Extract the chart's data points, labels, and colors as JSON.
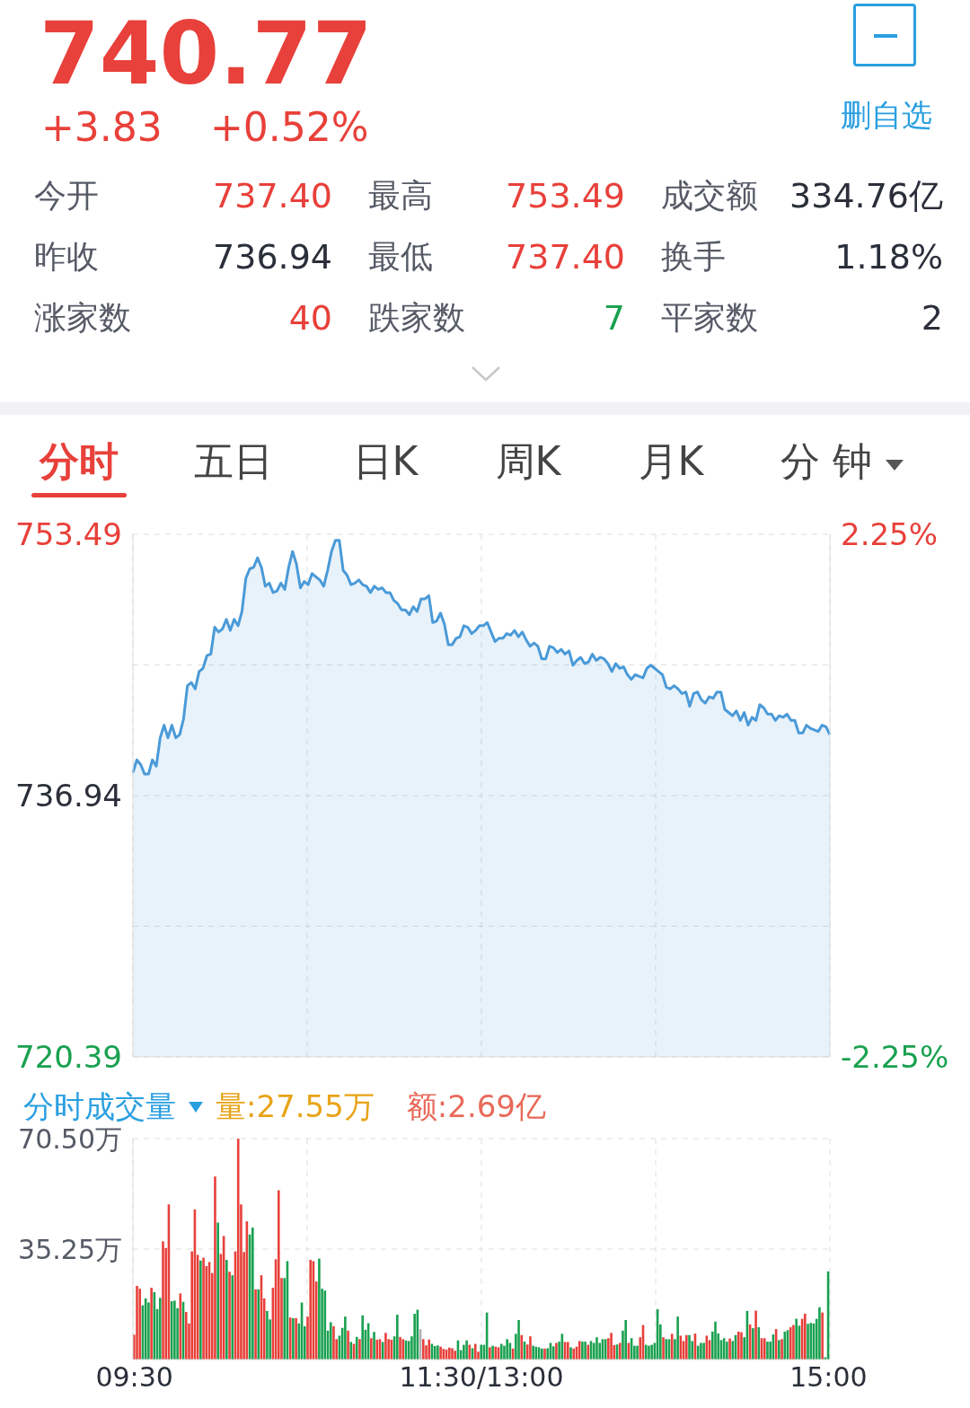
{
  "chart_data": [
    {
      "type": "other",
      "title": "740.77",
      "annotations": [
        "+3.83",
        "+0.52%",
        "删自选",
        "今开",
        "737.40",
        "最高",
        "753.49",
        "成交额",
        "334.76亿",
        "昨收",
        "736.94",
        "最低",
        "737.40",
        "换手",
        "1.18%",
        "涨家数",
        "40",
        "跌家数",
        "7",
        "平家数",
        "2",
        "分时",
        "五日",
        "日K",
        "周K",
        "月K",
        "分 钟"
      ]
    },
    {
      "type": "area",
      "categories": [
        null,
        null,
        null,
        null,
        null,
        null,
        null,
        null,
        null,
        null,
        null,
        null,
        null,
        null,
        null,
        null,
        null,
        null,
        null,
        null,
        null,
        null,
        null,
        null,
        null,
        null,
        null,
        null,
        null,
        null,
        null,
        null,
        null,
        null,
        null,
        null,
        null,
        null,
        null,
        null,
        null,
        null,
        null,
        null,
        null,
        null,
        null,
        null,
        null,
        null,
        null,
        null,
        null,
        null,
        null,
        null,
        null,
        null,
        null,
        null,
        null,
        null,
        null,
        null,
        null,
        null,
        null,
        null,
        null,
        null,
        null,
        null,
        null,
        null,
        null,
        null,
        null,
        null,
        null,
        null,
        null,
        null,
        null,
        null,
        null,
        null,
        null,
        null,
        null,
        null,
        null,
        null,
        null,
        null,
        null,
        null,
        null,
        null,
        null,
        null,
        null,
        null,
        null,
        null,
        null,
        null,
        null,
        null,
        null,
        null,
        null,
        null,
        null,
        null,
        null,
        null,
        null,
        null,
        null,
        null,
        null,
        null,
        null,
        null,
        null,
        null,
        null,
        null,
        null,
        null,
        null,
        null,
        null,
        null,
        null,
        null,
        null,
        null,
        null,
        null,
        null,
        null,
        null,
        null,
        null,
        null,
        null,
        null,
        null,
        null,
        null,
        null,
        null,
        null,
        null,
        null,
        null,
        null,
        null,
        null,
        null,
        null,
        null,
        null,
        null,
        null,
        null,
        null,
        null,
        null,
        null,
        null,
        null,
        null,
        null,
        null,
        null,
        null,
        null,
        null
      ],
      "ylim": [
        720.39,
        753.49
      ],
      "yticks": [
        720.39,
        {
          "value": 728.665,
          "label": null
        },
        736.94,
        {
          "value": 745.215,
          "label": null
        },
        753.49
      ],
      "y2lim": [
        -2.25,
        2.25
      ],
      "y2ticks": [
        {
          "value": -2.25,
          "label": "-2.25%"
        },
        {
          "value": 2.25,
          "label": "2.25%"
        }
      ],
      "tick_labels": "y",
      "grid": true,
      "series": [
        {
          "color": "#4a9ad8",
          "values": [
            738.4,
            739.2,
            738.9,
            738.3,
            738.3,
            739.2,
            738.8,
            740.6,
            741.4,
            740.6,
            741.4,
            740.6,
            740.8,
            741.8,
            743.9,
            744.1,
            743.7,
            744.8,
            745.0,
            745.8,
            745.9,
            747.6,
            747.3,
            747.5,
            748.1,
            747.4,
            748.1,
            747.7,
            748.6,
            750.7,
            751.3,
            751.4,
            752.0,
            751.4,
            750.2,
            750.4,
            749.8,
            749.9,
            750.4,
            750.0,
            751.4,
            752.4,
            751.6,
            750.1,
            750.5,
            750.3,
            751.0,
            750.8,
            750.6,
            750.2,
            751.2,
            752.4,
            753.1,
            753.1,
            751.2,
            750.9,
            750.3,
            750.4,
            750.6,
            750.3,
            750.2,
            749.8,
            750.2,
            750.0,
            750.1,
            749.8,
            749.8,
            749.3,
            749.1,
            748.7,
            748.7,
            748.4,
            748.9,
            748.6,
            749.4,
            749.4,
            749.6,
            747.9,
            748.0,
            748.5,
            747.8,
            746.5,
            746.5,
            746.9,
            747.0,
            747.7,
            747.6,
            747.2,
            747.4,
            747.7,
            747.7,
            747.9,
            747.3,
            746.7,
            746.9,
            746.9,
            747.2,
            747.1,
            747.4,
            747.0,
            747.3,
            746.8,
            746.4,
            746.6,
            746.4,
            745.6,
            745.6,
            746.4,
            746.3,
            746.0,
            746.2,
            745.9,
            746.1,
            745.2,
            745.5,
            745.7,
            745.3,
            745.4,
            745.9,
            745.5,
            745.7,
            745.6,
            745.3,
            744.8,
            745.3,
            745.0,
            745.1,
            744.6,
            744.3,
            744.6,
            744.5,
            744.4,
            745.0,
            745.2,
            745.0,
            744.8,
            744.6,
            743.8,
            743.7,
            743.9,
            743.7,
            743.4,
            743.5,
            742.6,
            743.4,
            743.5,
            743.0,
            742.8,
            743.2,
            743.1,
            743.5,
            743.5,
            742.4,
            742.2,
            742.0,
            742.3,
            741.7,
            742.2,
            741.4,
            741.9,
            741.7,
            742.7,
            742.5,
            742.1,
            742.1,
            741.7,
            742.0,
            741.9,
            742.1,
            741.7,
            741.7,
            740.9,
            740.9,
            741.4,
            741.2,
            741.1,
            741.0,
            741.4,
            741.3,
            740.8
          ]
        }
      ]
    },
    {
      "type": "bar",
      "title": "分时成交量",
      "annotations": [
        "量:27.55万",
        "额:2.69亿"
      ],
      "ylim": [
        0,
        70.5
      ],
      "yticks": [
        {
          "value": 35.25,
          "label": "35.25万"
        },
        {
          "value": 70.5,
          "label": "70.50万"
        }
      ],
      "grid": true,
      "categories": [
        "09:30",
        null,
        null,
        null,
        null,
        null,
        null,
        null,
        null,
        null,
        null,
        null,
        null,
        null,
        null,
        null,
        null,
        null,
        null,
        null,
        null,
        null,
        null,
        null,
        null,
        null,
        null,
        null,
        null,
        null,
        null,
        null,
        null,
        null,
        null,
        null,
        null,
        null,
        null,
        null,
        null,
        null,
        null,
        null,
        null,
        null,
        null,
        null,
        null,
        null,
        null,
        null,
        null,
        null,
        null,
        null,
        null,
        null,
        null,
        null,
        null,
        null,
        null,
        null,
        null,
        null,
        null,
        null,
        null,
        null,
        null,
        null,
        null,
        null,
        null,
        null,
        null,
        null,
        null,
        null,
        null,
        null,
        null,
        null,
        null,
        null,
        null,
        null,
        null,
        null,
        null,
        null,
        null,
        null,
        null,
        null,
        null,
        null,
        null,
        null,
        null,
        null,
        null,
        null,
        null,
        null,
        null,
        null,
        null,
        null,
        null,
        null,
        null,
        null,
        null,
        null,
        null,
        null,
        null,
        null,
        "11:30/13:00",
        null,
        null,
        null,
        null,
        null,
        null,
        null,
        null,
        null,
        null,
        null,
        null,
        null,
        null,
        null,
        null,
        null,
        null,
        null,
        null,
        null,
        null,
        null,
        null,
        null,
        null,
        null,
        null,
        null,
        null,
        null,
        null,
        null,
        null,
        null,
        null,
        null,
        null,
        null,
        null,
        null,
        null,
        null,
        null,
        null,
        null,
        null,
        null,
        null,
        null,
        null,
        null,
        null,
        null,
        null,
        null,
        null,
        null,
        null,
        null,
        null,
        null,
        null,
        null,
        null,
        null,
        null,
        null,
        null,
        null,
        null,
        null,
        null,
        null,
        null,
        null,
        null,
        null,
        null,
        null,
        null,
        null,
        null,
        null,
        null,
        null,
        null,
        null,
        null,
        null,
        null,
        null,
        null,
        null,
        null,
        null,
        null,
        null,
        null,
        null,
        null,
        null,
        null,
        null,
        null,
        null,
        null,
        null,
        null,
        null,
        null,
        null,
        null,
        null,
        null,
        null,
        null,
        null,
        null,
        "15:00"
      ],
      "values": [
        7.9,
        23.5,
        22.6,
        17.3,
        19.5,
        18.2,
        22.9,
        21.5,
        16.1,
        19.7,
        37.7,
        35.6,
        49.5,
        18.6,
        18.8,
        16.4,
        21.1,
        18.4,
        15.2,
        11.5,
        34.5,
        47.9,
        33.4,
        31.6,
        32.5,
        29.8,
        31.1,
        27.6,
        58.4,
        43.7,
        33.7,
        39.4,
        31.8,
        28.0,
        26.9,
        34.5,
        70.5,
        49.5,
        34.3,
        44.1,
        39.9,
        42.1,
        22.4,
        22.4,
        26.9,
        19.5,
        15.5,
        12.8,
        22.9,
        32.0,
        54.0,
        26.0,
        26.0,
        31.4,
        13.4,
        13.2,
        13.2,
        11.5,
        18.2,
        10.6,
        13.7,
        31.8,
        31.4,
        24.9,
        32.2,
        22.6,
        22.0,
        9.2,
        11.9,
        10.6,
        6.5,
        7.6,
        10.1,
        13.7,
        9.2,
        5.6,
        5.0,
        7.2,
        6.5,
        14.1,
        9.5,
        11.6,
        6.8,
        8.8,
        6.3,
        6.5,
        5.6,
        8.5,
        6.5,
        6.3,
        7.4,
        14.3,
        7.2,
        6.5,
        6.1,
        5.9,
        7.4,
        14.6,
        15.9,
        9.7,
        6.5,
        4.5,
        6.4,
        5.0,
        4.3,
        4.5,
        4.1,
        3.4,
        3.2,
        3.8,
        3.6,
        2.8,
        6.1,
        3.0,
        4.7,
        6.1,
        4.7,
        3.6,
        5.0,
        2.5,
        4.7,
        4.7,
        15.0,
        3.9,
        4.4,
        4.1,
        3.9,
        5.0,
        4.4,
        6.5,
        5.3,
        3.5,
        8.2,
        12.6,
        7.8,
        5.7,
        4.8,
        7.4,
        4.4,
        4.1,
        3.9,
        3.5,
        3.5,
        3.6,
        5.3,
        4.2,
        5.3,
        5.7,
        8.2,
        5.6,
        5.6,
        3.9,
        3.5,
        4.1,
        5.9,
        5.7,
        5.7,
        4.7,
        5.9,
        5.3,
        7.1,
        5.3,
        6.5,
        6.5,
        6.8,
        8.5,
        4.6,
        4.8,
        5.3,
        9.2,
        12.6,
        5.3,
        6.8,
        4.4,
        4.4,
        7.1,
        11.0,
        4.7,
        4.4,
        4.7,
        5.3,
        16.1,
        11.2,
        7.1,
        6.5,
        6.5,
        8.2,
        6.5,
        13.7,
        7.6,
        5.9,
        7.8,
        7.8,
        5.9,
        8.3,
        4.4,
        5.3,
        5.3,
        7.6,
        6.2,
        8.9,
        12.1,
        8.3,
        6.2,
        6.8,
        5.7,
        6.7,
        5.9,
        7.8,
        8.9,
        8.7,
        7.1,
        15.5,
        11.2,
        10.0,
        15.6,
        10.3,
        6.8,
        6.8,
        5.7,
        5.7,
        8.0,
        9.7,
        6.2,
        6.5,
        8.9,
        9.4,
        10.3,
        11.0,
        13.0,
        10.8,
        13.0,
        14.6,
        11.4,
        11.7,
        11.5,
        13.0,
        16.7,
        15.0,
        0.7,
        28.1
      ],
      "colors": [
        "#e8403a",
        "#e8403a",
        "#e8403a",
        "#1aa150",
        "#1aa150",
        "#1aa150",
        "#e8403a",
        "#1aa150",
        "#1aa150",
        "#1aa150",
        "#e8403a",
        "#e8403a",
        "#e8403a",
        "#1aa150",
        "#1aa150",
        "#1aa150",
        "#e8403a",
        "#1aa150",
        "#e8403a",
        "#e8403a",
        "#e8403a",
        "#e8403a",
        "#e8403a",
        "#1aa150",
        "#e8403a",
        "#e8403a",
        "#e8403a",
        "#e8403a",
        "#e8403a",
        "#1aa150",
        "#e8403a",
        "#e8403a",
        "#1aa150",
        "#e8403a",
        "#1aa150",
        "#e8403a",
        "#e8403a",
        "#e8403a",
        "#e8403a",
        "#e8403a",
        "#1aa150",
        "#1aa150",
        "#e8403a",
        "#1aa150",
        "#e8403a",
        "#e8403a",
        "#1aa150",
        "#1aa150",
        "#e8403a",
        "#e8403a",
        "#e8403a",
        "#e8403a",
        "#1aa150",
        "#1aa150",
        "#e8403a",
        "#1aa150",
        "#e8403a",
        "#1aa150",
        "#1aa150",
        "#1aa150",
        "#e8403a",
        "#e8403a",
        "#e8403a",
        "#e8403a",
        "#1aa150",
        "#1aa150",
        "#1aa150",
        "#1aa150",
        "#1aa150",
        "#e8403a",
        "#e8403a",
        "#1aa150",
        "#1aa150",
        "#1aa150",
        "#e8403a",
        "#1aa150",
        "#e8403a",
        "#1aa150",
        "#e8403a",
        "#1aa150",
        "#1aa150",
        "#1aa150",
        "#e8403a",
        "#1aa150",
        "#e8403a",
        "#e8403a",
        "#1aa150",
        "#e8403a",
        "#e8403a",
        "#e8403a",
        "#1aa150",
        "#1aa150",
        "#e8403a",
        "#e8403a",
        "#1aa150",
        "#1aa150",
        "#1aa150",
        "#1aa150",
        "#1aa150",
        "#b0b0b0",
        "#e8403a",
        "#e8403a",
        "#e8403a",
        "#1aa150",
        "#1aa150",
        "#1aa150",
        "#e8403a",
        "#e8403a",
        "#e8403a",
        "#e8403a",
        "#e8403a",
        "#e8403a",
        "#1aa150",
        "#1aa150",
        "#1aa150",
        "#1aa150",
        "#e8403a",
        "#1aa150",
        "#e8403a",
        "#e8403a",
        "#1aa150",
        "#1aa150",
        "#1aa150",
        "#e8403a",
        "#1aa150",
        "#e8403a",
        "#e8403a",
        "#1aa150",
        "#1aa150",
        "#1aa150",
        "#1aa150",
        "#e8403a",
        "#1aa150",
        "#1aa150",
        "#e8403a",
        "#1aa150",
        "#e8403a",
        "#e8403a",
        "#1aa150",
        "#1aa150",
        "#1aa150",
        "#1aa150",
        "#e8403a",
        "#1aa150",
        "#1aa150",
        "#1aa150",
        "#e8403a",
        "#1aa150",
        "#1aa150",
        "#e8403a",
        "#e8403a",
        "#1aa150",
        "#e8403a",
        "#e8403a",
        "#e8403a",
        "#1aa150",
        "#1aa150",
        "#e8403a",
        "#1aa150",
        "#1aa150",
        "#1aa150",
        "#1aa150",
        "#1aa150",
        "#1aa150",
        "#e8403a",
        "#e8403a",
        "#e8403a",
        "#1aa150",
        "#e8403a",
        "#1aa150",
        "#1aa150",
        "#e8403a",
        "#1aa150",
        "#1aa150",
        "#1aa150",
        "#e8403a",
        "#e8403a",
        "#1aa150",
        "#1aa150",
        "#1aa150",
        "#1aa150",
        "#1aa150",
        "#1aa150",
        "#e8403a",
        "#1aa150",
        "#1aa150",
        "#e8403a",
        "#1aa150",
        "#1aa150",
        "#e8403a",
        "#e8403a",
        "#e8403a",
        "#1aa150",
        "#1aa150",
        "#e8403a",
        "#1aa150",
        "#1aa150",
        "#1aa150",
        "#e8403a",
        "#e8403a",
        "#1aa150",
        "#1aa150",
        "#1aa150",
        "#1aa150",
        "#1aa150",
        "#1aa150",
        "#e8403a",
        "#1aa150",
        "#1aa150",
        "#e8403a",
        "#e8403a",
        "#1aa150",
        "#1aa150",
        "#e8403a",
        "#1aa150",
        "#e8403a",
        "#1aa150",
        "#e8403a",
        "#e8403a",
        "#1aa150",
        "#1aa150",
        "#1aa150",
        "#e8403a",
        "#1aa150",
        "#e8403a",
        "#1aa150",
        "#1aa150",
        "#e8403a",
        "#e8403a",
        "#1aa150",
        "#1aa150",
        "#e8403a",
        "#e8403a",
        "#1aa150",
        "#1aa150",
        "#1aa150",
        "#1aa150",
        "#1aa150",
        "#e8403a",
        "#1aa150",
        "#1aa150"
      ]
    }
  ]
}
